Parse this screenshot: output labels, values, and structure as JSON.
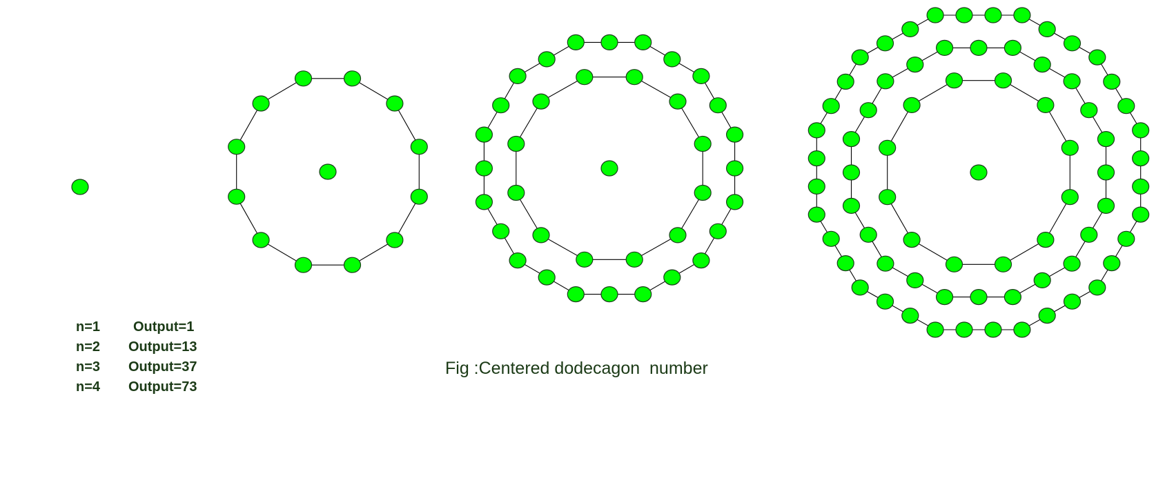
{
  "caption": "Fig :Centered dodecagon  number",
  "legend": [
    {
      "n": "n=1",
      "output": "Output=1"
    },
    {
      "n": "n=2",
      "output": "Output=13"
    },
    {
      "n": "n=3",
      "output": "Output=37"
    },
    {
      "n": "n=4",
      "output": "Output=73"
    }
  ],
  "figures": [
    {
      "n": 1,
      "dots": 1,
      "rings": 0
    },
    {
      "n": 2,
      "dots": 13,
      "rings": 1
    },
    {
      "n": 3,
      "dots": 37,
      "rings": 2
    },
    {
      "n": 4,
      "dots": 73,
      "rings": 3
    }
  ],
  "colors": {
    "dot_fill": "#00ff00",
    "dot_stroke": "#1a3d1a",
    "line": "#000000",
    "text": "#1b3a16"
  }
}
